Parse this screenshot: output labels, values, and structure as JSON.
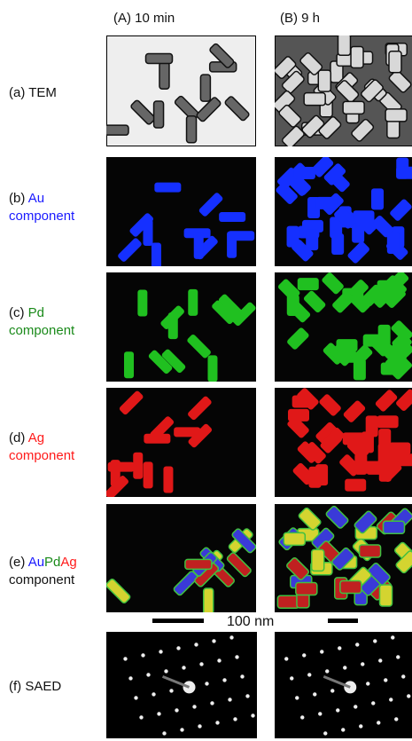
{
  "columns": [
    "(A) 10 min",
    "(B) 9 h"
  ],
  "rows": [
    [
      "(a) TEM"
    ],
    [
      "(b) ",
      "Au",
      "component"
    ],
    [
      "(c) ",
      "Pd",
      "component"
    ],
    [
      "(d) ",
      "Ag",
      "component"
    ],
    [
      "(e) ",
      "Au",
      "Pd",
      "Ag",
      "component"
    ],
    [
      "(f) SAED"
    ]
  ],
  "scale_bar": "100 nm"
}
